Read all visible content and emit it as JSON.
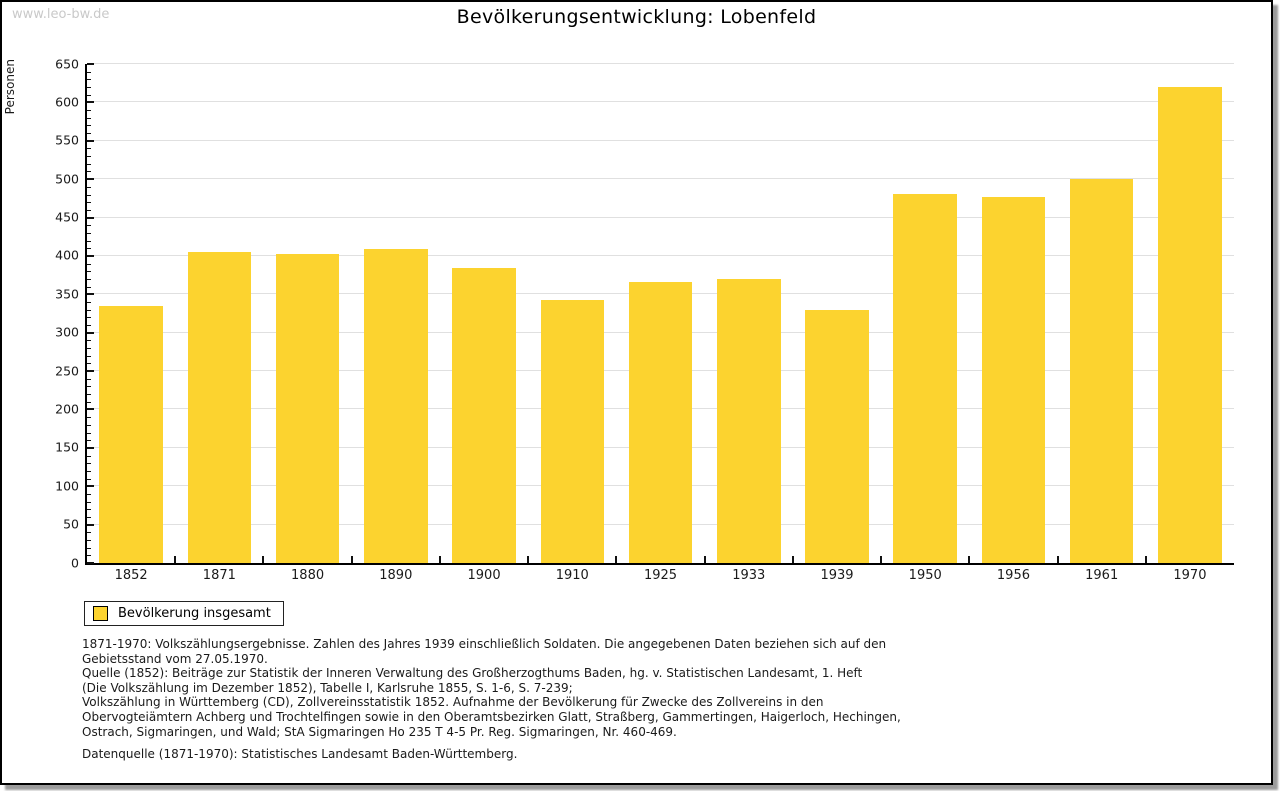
{
  "watermark": "www.leo-bw.de",
  "title": "Bevölkerungsentwicklung: Lobenfeld",
  "chart_data": {
    "type": "bar",
    "title": "Bevölkerungsentwicklung: Lobenfeld",
    "xlabel": "",
    "ylabel": "Personen",
    "categories": [
      "1852",
      "1871",
      "1880",
      "1890",
      "1900",
      "1910",
      "1925",
      "1933",
      "1939",
      "1950",
      "1956",
      "1961",
      "1970"
    ],
    "values": [
      335,
      405,
      402,
      409,
      384,
      343,
      366,
      370,
      330,
      481,
      477,
      500,
      620
    ],
    "ylim": [
      0,
      650
    ],
    "ytick_step": 50,
    "yminor_step": 10,
    "grid": true,
    "bar_color": "#fcd32f",
    "gridline_color": "#e0e0e0",
    "legend_position": "bottom-left"
  },
  "legend": {
    "label": "Bevölkerung insgesamt",
    "swatch_color": "#fcd32f"
  },
  "footnotes": {
    "lines": [
      "1871-1970: Volkszählungsergebnisse. Zahlen des Jahres 1939 einschließlich Soldaten. Die angegebenen Daten beziehen sich auf den",
      "Gebietsstand vom 27.05.1970.",
      "Quelle (1852): Beiträge zur Statistik der Inneren Verwaltung des Großherzogthums Baden, hg. v. Statistischen Landesamt, 1. Heft",
      "(Die Volkszählung im Dezember 1852), Tabelle I, Karlsruhe 1855, S. 1-6, S. 7-239;",
      "Volkszählung in Württemberg (CD), Zollvereinsstatistik 1852. Aufnahme der Bevölkerung für Zwecke des Zollvereins in den",
      "Obervogteiämtern Achberg und Trochtelfingen sowie in den Oberamtsbezirken Glatt, Straßberg, Gammertingen, Haigerloch, Hechingen,",
      "Ostrach, Sigmaringen, und Wald; StA Sigmaringen Ho 235 T 4-5 Pr. Reg. Sigmaringen, Nr. 460-469."
    ],
    "datasource": "Datenquelle (1871-1970): Statistisches Landesamt Baden-Württemberg."
  }
}
